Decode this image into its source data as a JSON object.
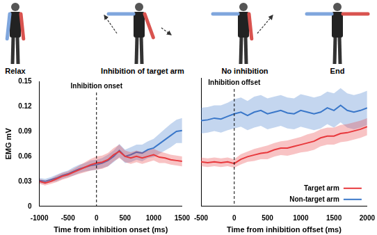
{
  "illustration": {
    "labels": [
      "Relax",
      "Inhibition of target arm",
      "No inhibition",
      "End"
    ]
  },
  "chart_data": [
    {
      "type": "line",
      "x_label": "Time from inhibition onset (ms)",
      "y_label": "EMG mV",
      "x": [
        -1000,
        -900,
        -800,
        -700,
        -600,
        -500,
        -400,
        -300,
        -200,
        -100,
        0,
        100,
        200,
        300,
        400,
        500,
        600,
        700,
        800,
        900,
        1000,
        1100,
        1200,
        1300,
        1400,
        1500
      ],
      "series": [
        {
          "name": "Target arm",
          "color": "#e8383d",
          "values": [
            0.03,
            0.028,
            0.03,
            0.033,
            0.036,
            0.038,
            0.041,
            0.044,
            0.047,
            0.05,
            0.052,
            0.053,
            0.056,
            0.062,
            0.066,
            0.06,
            0.058,
            0.06,
            0.058,
            0.06,
            0.062,
            0.059,
            0.058,
            0.056,
            0.055,
            0.054
          ],
          "error": [
            0.003,
            0.003,
            0.003,
            0.004,
            0.004,
            0.004,
            0.004,
            0.005,
            0.006,
            0.007,
            0.008,
            0.008,
            0.008,
            0.008,
            0.008,
            0.007,
            0.007,
            0.007,
            0.007,
            0.007,
            0.007,
            0.007,
            0.006,
            0.006,
            0.006,
            0.006
          ]
        },
        {
          "name": "Non-target arm",
          "color": "#3a78c9",
          "values": [
            0.031,
            0.03,
            0.032,
            0.034,
            0.037,
            0.039,
            0.042,
            0.045,
            0.047,
            0.049,
            0.05,
            0.052,
            0.055,
            0.06,
            0.067,
            0.06,
            0.062,
            0.065,
            0.064,
            0.068,
            0.07,
            0.075,
            0.08,
            0.085,
            0.09,
            0.091
          ],
          "error": [
            0.003,
            0.003,
            0.003,
            0.004,
            0.004,
            0.004,
            0.005,
            0.005,
            0.005,
            0.006,
            0.006,
            0.006,
            0.007,
            0.007,
            0.008,
            0.008,
            0.009,
            0.009,
            0.01,
            0.01,
            0.011,
            0.012,
            0.013,
            0.014,
            0.014,
            0.015
          ]
        }
      ],
      "xlim": [
        -1000,
        1500
      ],
      "xticks": [
        -1000,
        -500,
        0,
        500,
        1000,
        1500
      ],
      "ylim": [
        0,
        0.15
      ],
      "yticks": [
        0,
        0.03,
        0.06,
        0.09,
        0.12,
        0.15
      ],
      "grid": false,
      "annotations": [
        {
          "x": 0,
          "text": "Inhibition onset",
          "line_style": "dashed"
        }
      ]
    },
    {
      "type": "line",
      "x_label": "Time from inhibition offset (ms)",
      "x": [
        -500,
        -400,
        -300,
        -200,
        -100,
        0,
        100,
        200,
        300,
        400,
        500,
        600,
        700,
        800,
        900,
        1000,
        1100,
        1200,
        1300,
        1400,
        1500,
        1600,
        1700,
        1800,
        1900,
        2000
      ],
      "series": [
        {
          "name": "Target arm",
          "color": "#e8383d",
          "values": [
            0.052,
            0.051,
            0.052,
            0.051,
            0.052,
            0.05,
            0.055,
            0.058,
            0.06,
            0.062,
            0.063,
            0.066,
            0.068,
            0.068,
            0.07,
            0.072,
            0.074,
            0.076,
            0.08,
            0.082,
            0.082,
            0.085,
            0.086,
            0.088,
            0.09,
            0.093
          ],
          "error": [
            0.005,
            0.005,
            0.005,
            0.005,
            0.005,
            0.005,
            0.006,
            0.006,
            0.007,
            0.007,
            0.008,
            0.008,
            0.008,
            0.009,
            0.009,
            0.009,
            0.01,
            0.01,
            0.01,
            0.01,
            0.01,
            0.01,
            0.01,
            0.01,
            0.01,
            0.01
          ]
        },
        {
          "name": "Non-target arm",
          "color": "#3a78c9",
          "values": [
            0.1,
            0.101,
            0.103,
            0.102,
            0.105,
            0.108,
            0.11,
            0.106,
            0.11,
            0.112,
            0.108,
            0.11,
            0.112,
            0.109,
            0.108,
            0.112,
            0.11,
            0.108,
            0.11,
            0.115,
            0.112,
            0.118,
            0.112,
            0.11,
            0.112,
            0.115
          ],
          "error": [
            0.015,
            0.015,
            0.015,
            0.016,
            0.016,
            0.017,
            0.017,
            0.017,
            0.018,
            0.018,
            0.018,
            0.018,
            0.018,
            0.018,
            0.018,
            0.019,
            0.019,
            0.019,
            0.019,
            0.019,
            0.02,
            0.02,
            0.02,
            0.02,
            0.02,
            0.02
          ]
        }
      ],
      "xlim": [
        -500,
        2000
      ],
      "xticks": [
        -500,
        0,
        500,
        1000,
        1500,
        2000
      ],
      "ylim": [
        0,
        0.15
      ],
      "yticks": [
        0,
        0.03,
        0.06,
        0.09,
        0.12,
        0.15
      ],
      "grid": false,
      "tick_labels": "x",
      "legend": "lower right",
      "annotations": [
        {
          "x": 0,
          "text": "Inhibition offset",
          "line_style": "dashed"
        }
      ]
    }
  ]
}
